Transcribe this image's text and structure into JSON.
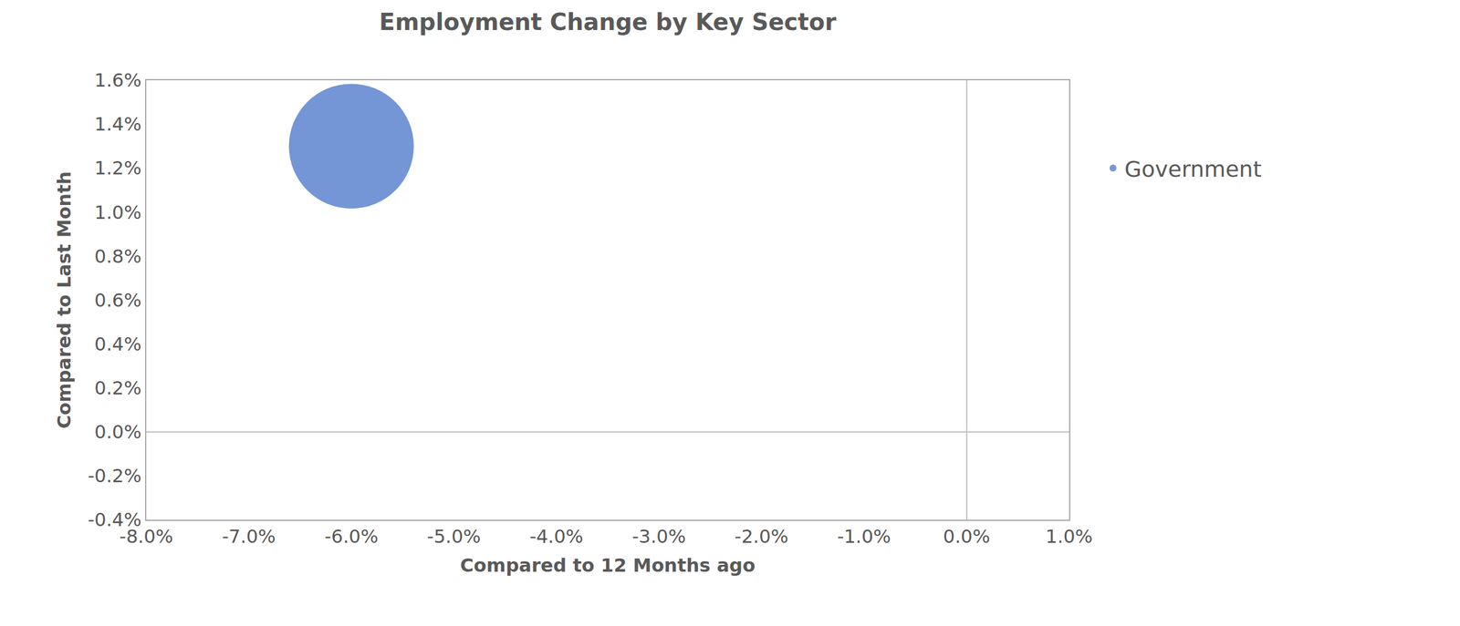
{
  "chart_data": {
    "type": "bubble",
    "title": "Employment Change by Key Sector",
    "x_label": "Compared to 12 Months ago",
    "y_label": "Compared to Last Month",
    "series": [
      {
        "name": "Government",
        "color": "#7496d6",
        "x": [
          -6.0
        ],
        "y": [
          1.3
        ],
        "sizes": [
          1
        ]
      }
    ],
    "xlim": [
      -8,
      1
    ],
    "xticks": [
      {
        "value": -8,
        "label": "-8.0%"
      },
      {
        "value": -7,
        "label": "-7.0%"
      },
      {
        "value": -6,
        "label": "-6.0%"
      },
      {
        "value": -5,
        "label": "-5.0%"
      },
      {
        "value": -4,
        "label": "-4.0%"
      },
      {
        "value": -3,
        "label": "-3.0%"
      },
      {
        "value": -2,
        "label": "-2.0%"
      },
      {
        "value": -1,
        "label": "-1.0%"
      },
      {
        "value": 0,
        "label": "0.0%"
      },
      {
        "value": 1,
        "label": "1.0%"
      }
    ],
    "ylim": [
      -0.4,
      1.6
    ],
    "yticks": [
      {
        "value": -0.4,
        "label": "-0.4%"
      },
      {
        "value": -0.2,
        "label": "-0.2%"
      },
      {
        "value": 0,
        "label": "0.0%"
      },
      {
        "value": 0.2,
        "label": "0.2%"
      },
      {
        "value": 0.4,
        "label": "0.4%"
      },
      {
        "value": 0.6,
        "label": "0.6%"
      },
      {
        "value": 0.8,
        "label": "0.8%"
      },
      {
        "value": 1.0,
        "label": "1.0%"
      },
      {
        "value": 1.2,
        "label": "1.2%"
      },
      {
        "value": 1.4,
        "label": "1.4%"
      },
      {
        "value": 1.6,
        "label": "1.6%"
      }
    ],
    "grid": false,
    "legend": "right"
  }
}
